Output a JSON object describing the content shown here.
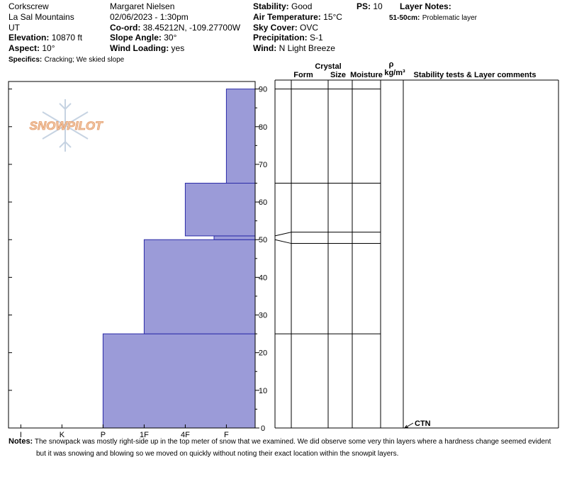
{
  "header": {
    "columns": [
      [
        {
          "text": "Corkscrew"
        },
        {
          "text": "La Sal Mountains"
        },
        {
          "text": "UT"
        },
        {
          "label": "Elevation:",
          "value": "10870 ft"
        },
        {
          "label": "Aspect:",
          "value": "10°"
        },
        {
          "label": "Specifics:",
          "value": "Cracking; We skied slope"
        }
      ],
      [
        {
          "text": "Margaret Nielsen"
        },
        {
          "text": "02/06/2023 - 1:30pm"
        },
        {
          "label": "Co-ord:",
          "value": "38.45212N, -109.27700W"
        },
        {
          "label": "Slope Angle:",
          "value": "30°"
        },
        {
          "label": "Wind Loading:",
          "value": "yes"
        }
      ],
      [
        {
          "label": "Stability:",
          "value": "Good"
        },
        {
          "label": "Air Temperature:",
          "value": "15°C"
        },
        {
          "label": "Sky Cover:",
          "value": "OVC"
        },
        {
          "label": "Precipitation:",
          "value": "S-1"
        },
        {
          "label": "Wind:",
          "value": "N Light Breeze"
        }
      ],
      [
        {
          "label": "PS:",
          "value": "10"
        }
      ],
      [
        {
          "label": "Layer Notes:"
        },
        {
          "label": "51-50cm:",
          "value": "Problematic layer"
        }
      ]
    ]
  },
  "logo": "SNOWPILOT",
  "profile": {
    "depth_range": [
      0,
      92
    ],
    "depth_ticks": [
      0,
      10,
      20,
      30,
      40,
      50,
      60,
      70,
      80,
      90
    ],
    "hardness_range": [
      0.3,
      6.3
    ],
    "hardness_ticks": [
      {
        "value": 6,
        "label": "I"
      },
      {
        "value": 5,
        "label": "K"
      },
      {
        "value": 4,
        "label": "P"
      },
      {
        "value": 3,
        "label": "1F"
      },
      {
        "value": 2,
        "label": "4F"
      },
      {
        "value": 1,
        "label": "F"
      }
    ],
    "fill": "#9b9bd8",
    "stroke": "#2a2aa8",
    "layers": [
      {
        "top": 25,
        "bottom": 0,
        "hardness": 4
      },
      {
        "top": 50,
        "bottom": 25,
        "hardness": 3
      },
      {
        "top": 51,
        "bottom": 50,
        "hardness": 1.3
      },
      {
        "top": 65,
        "bottom": 51,
        "hardness": 2
      },
      {
        "top": 90,
        "bottom": 65,
        "hardness": 1
      }
    ],
    "tests": [
      {
        "depth": 0,
        "label": "CTN"
      }
    ]
  },
  "table_headers": [
    "Crystal",
    "Form",
    "Size",
    "Moisture",
    "ρ",
    "kg/m³",
    "Stability tests & Layer comments"
  ],
  "notes": {
    "label": "Notes:",
    "text": "The snowpack was mostly right-side up in the top meter of snow that we examined. We did observe some very thin layers where a hardness change seemed evident but it was snowing and blowing so we moved on quickly without noting their exact location within the snowpit layers."
  }
}
